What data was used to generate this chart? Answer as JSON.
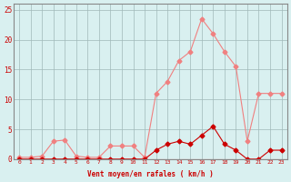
{
  "x": [
    0,
    1,
    2,
    3,
    4,
    5,
    6,
    7,
    8,
    9,
    10,
    11,
    12,
    13,
    14,
    15,
    16,
    17,
    18,
    19,
    20,
    21,
    22,
    23
  ],
  "y_rafales": [
    0.3,
    0.3,
    0.5,
    3.0,
    3.2,
    0.5,
    0.3,
    0.3,
    2.2,
    2.2,
    2.2,
    0.3,
    11.0,
    13.0,
    16.5,
    18.0,
    23.5,
    21.0,
    18.0,
    15.5,
    3.0,
    11.0,
    11.0,
    11.0
  ],
  "y_moyen": [
    0.0,
    0.0,
    0.0,
    0.0,
    0.0,
    0.0,
    0.0,
    0.0,
    0.0,
    0.0,
    0.0,
    0.0,
    1.5,
    2.5,
    3.0,
    2.5,
    4.0,
    5.5,
    2.5,
    1.5,
    0.0,
    0.0,
    1.5,
    1.5
  ],
  "color_rafales": "#f08080",
  "color_moyen": "#cc0000",
  "bg_color": "#d9f0f0",
  "grid_color": "#a0b8b8",
  "xlabel": "Vent moyen/en rafales ( km/h )",
  "yticks": [
    0,
    5,
    10,
    15,
    20,
    25
  ],
  "xticks": [
    0,
    1,
    2,
    3,
    4,
    5,
    6,
    7,
    8,
    9,
    10,
    11,
    12,
    13,
    14,
    15,
    16,
    17,
    18,
    19,
    20,
    21,
    22,
    23
  ],
  "ylim": [
    0,
    26
  ],
  "xlim": [
    -0.5,
    23.5
  ]
}
